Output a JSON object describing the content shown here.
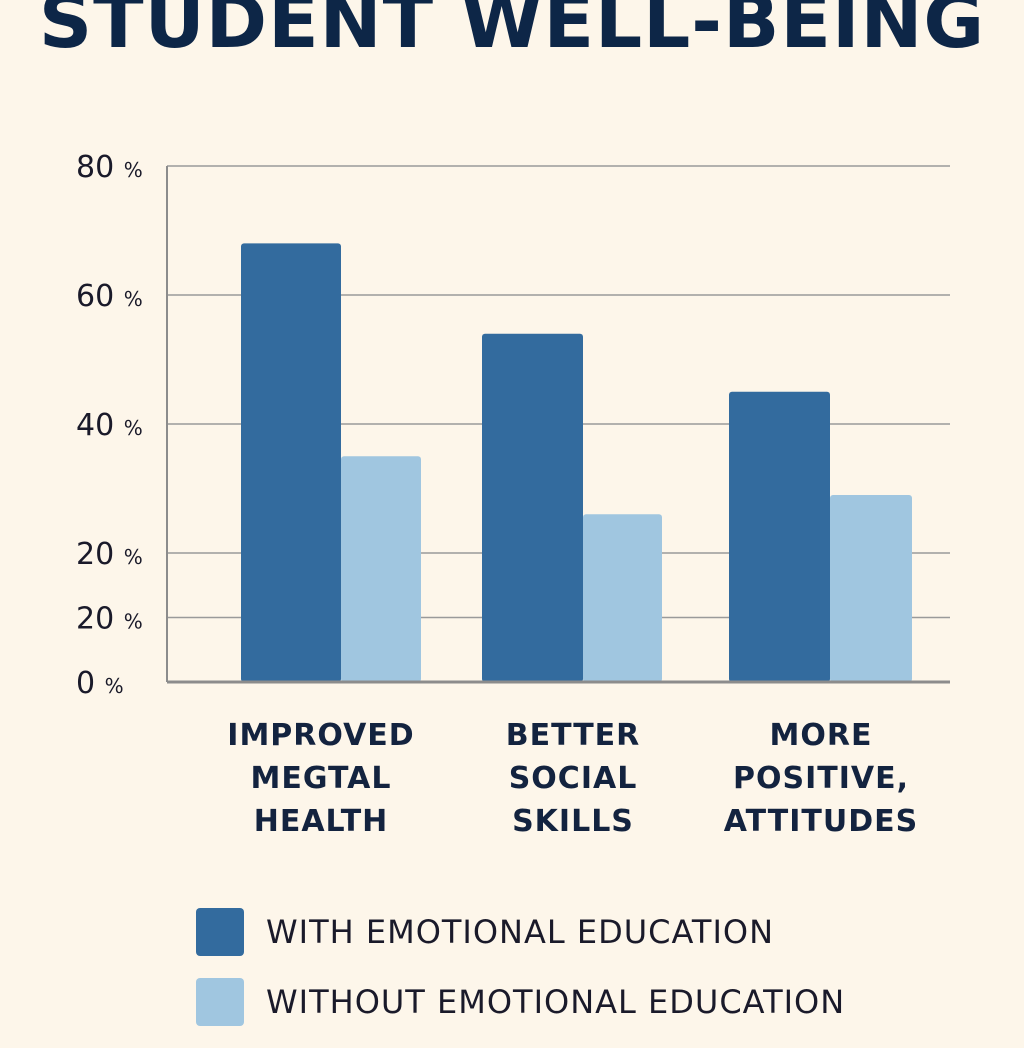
{
  "chart_data": {
    "type": "bar",
    "title": "STUDENT WELL-BEING",
    "xlabel": "",
    "ylabel": "",
    "categories": [
      [
        "IMPROVED",
        "MEGTAL",
        "HEALTH"
      ],
      [
        "BETTER",
        "SOCIAL",
        "SKILLS"
      ],
      [
        "MORE",
        "POSITIVE,",
        "ATTITUDES"
      ]
    ],
    "series": [
      {
        "name": "WITH EMOTIONAL EDUCATION",
        "color": "#336b9e",
        "values": [
          68,
          54,
          45
        ]
      },
      {
        "name": "WITHOUT EMOTIONAL EDUCATION",
        "color": "#a0c6e0",
        "values": [
          35,
          26,
          29
        ]
      }
    ],
    "ylim": [
      0,
      80
    ],
    "yticks": [
      {
        "value": 0,
        "num": "0",
        "unit": "%"
      },
      {
        "value": 20,
        "num": "20",
        "unit": "%"
      },
      {
        "value": 40,
        "num": "40",
        "unit": "%"
      },
      {
        "value": 60,
        "num": "60",
        "unit": "%"
      },
      {
        "value": 80,
        "num": "80",
        "unit": "%"
      }
    ],
    "extra_tick": {
      "num": "20",
      "unit": "%"
    },
    "grid": true,
    "legend_position": "bottom-left"
  }
}
